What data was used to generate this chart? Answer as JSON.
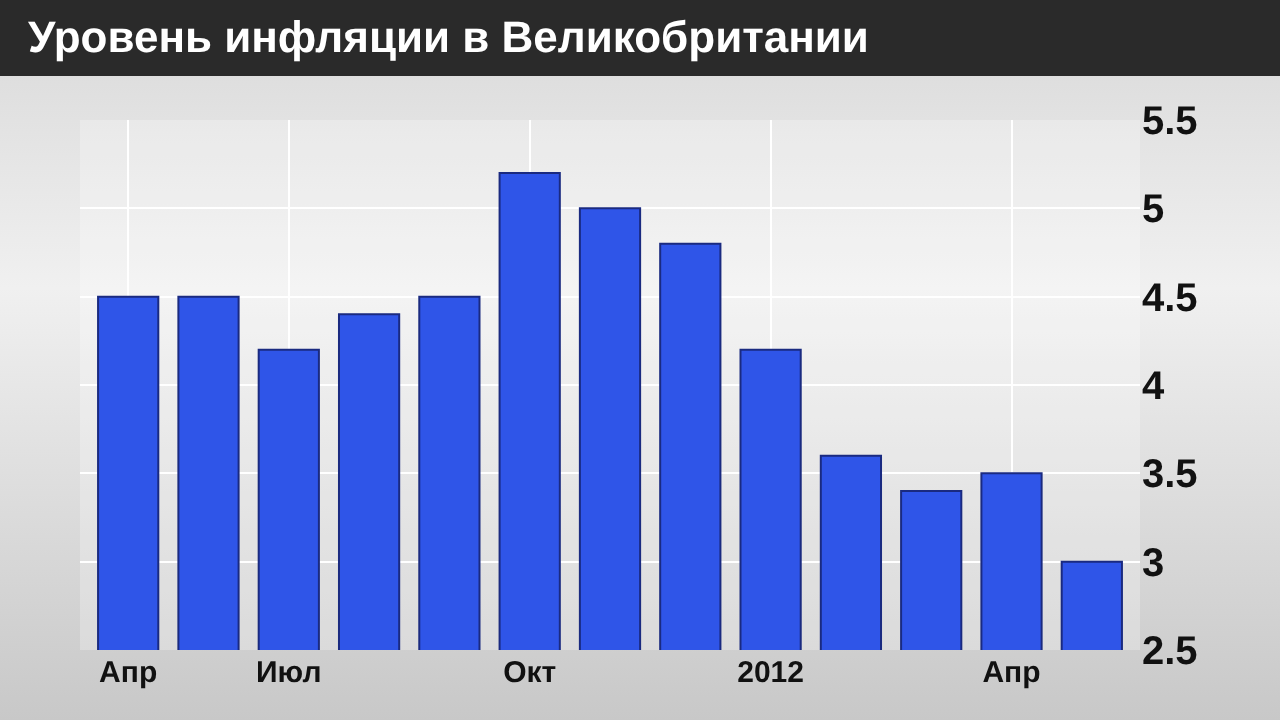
{
  "chart_data": {
    "type": "bar",
    "title": "Уровень инфляции в Великобритании",
    "categories": [
      "Апр",
      null,
      "Июл",
      null,
      null,
      "Окт",
      null,
      null,
      "2012",
      null,
      null,
      "Апр",
      null
    ],
    "values": [
      4.5,
      4.5,
      4.2,
      4.4,
      4.5,
      5.2,
      5.0,
      4.8,
      4.2,
      3.6,
      3.4,
      3.5,
      3.0
    ],
    "color": "#2f55e8",
    "ylim": [
      2.5,
      5.5
    ],
    "yticks": [
      2.5,
      3,
      3.5,
      4,
      4.5,
      5,
      5.5
    ],
    "grid": true
  }
}
